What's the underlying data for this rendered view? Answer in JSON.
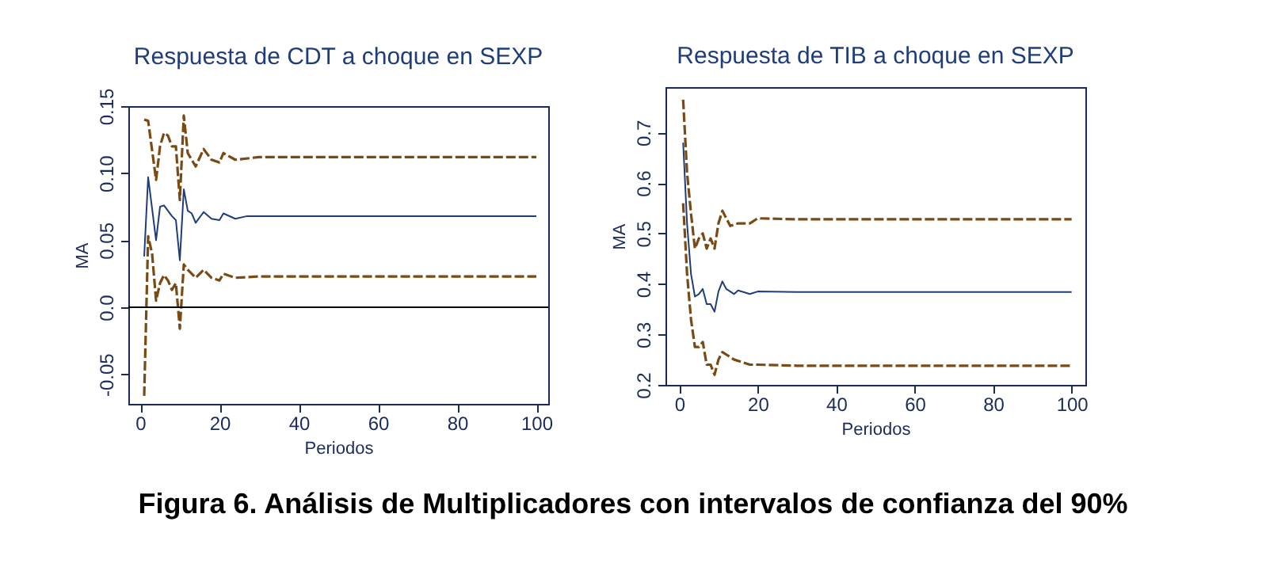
{
  "chart_data": [
    {
      "type": "line",
      "title": "Respuesta de CDT a choque en SEXP",
      "xlabel": "Periodos",
      "ylabel": "MA",
      "xlim": [
        -3,
        103
      ],
      "xticks": [
        0,
        20,
        40,
        60,
        80,
        100
      ],
      "ylim": [
        -0.072,
        0.15
      ],
      "yticks": [
        -0.05,
        {
          "value": 0,
          "label": "0.0"
        },
        0.05,
        {
          "value": 0.1,
          "label": "0.10"
        },
        {
          "value": 0.15,
          "label": "0.15"
        }
      ],
      "grid": false,
      "ref_lines": [
        {
          "axis": "y",
          "value": 0,
          "color": "#000000"
        }
      ],
      "series": [
        {
          "color": "#7a4a14",
          "line_style": "dashed",
          "x": [
            1,
            2,
            4,
            5,
            6,
            7,
            8,
            9,
            10,
            11,
            12,
            14,
            16,
            18,
            20,
            21,
            24,
            30,
            100
          ],
          "values": [
            0.14,
            0.139,
            0.095,
            0.12,
            0.13,
            0.128,
            0.12,
            0.12,
            0.08,
            0.143,
            0.115,
            0.105,
            0.118,
            0.11,
            0.108,
            0.115,
            0.11,
            0.112,
            0.112
          ]
        },
        {
          "color": "#1f3d7a",
          "line_style": "solid",
          "x": [
            1,
            2,
            4,
            5,
            6,
            7,
            8,
            9,
            10,
            11,
            12,
            13,
            14,
            16,
            18,
            20,
            21,
            24,
            27,
            100
          ],
          "values": [
            0.038,
            0.097,
            0.05,
            0.075,
            0.076,
            0.072,
            0.068,
            0.065,
            0.035,
            0.088,
            0.072,
            0.07,
            0.063,
            0.071,
            0.066,
            0.065,
            0.07,
            0.066,
            0.068,
            0.068
          ]
        },
        {
          "color": "#7a4a14",
          "line_style": "dashed",
          "x": [
            1,
            2,
            3,
            4,
            5,
            6,
            7,
            8,
            9,
            10,
            11,
            12,
            14,
            16,
            18,
            20,
            21,
            24,
            30,
            100
          ],
          "values": [
            -0.066,
            0.053,
            0.04,
            0.005,
            0.018,
            0.024,
            0.02,
            0.013,
            0.018,
            -0.016,
            0.032,
            0.028,
            0.022,
            0.028,
            0.022,
            0.02,
            0.025,
            0.022,
            0.023,
            0.023
          ]
        }
      ],
      "annotations": [
        "Figura 6. Análisis de Multiplicadores con intervalos de confianza del 90%"
      ]
    },
    {
      "type": "line",
      "title": "Respuesta de TIB a choque en SEXP",
      "xlabel": "Periodos",
      "ylabel": "MA",
      "xlim": [
        -3.5,
        103.5
      ],
      "xticks": [
        0,
        20,
        40,
        60,
        80,
        100
      ],
      "ylim": [
        0.2,
        0.79
      ],
      "yticks": [
        0.2,
        0.3,
        0.4,
        0.5,
        0.6,
        0.7
      ],
      "grid": false,
      "series": [
        {
          "color": "#7a4a14",
          "line_style": "dashed",
          "x": [
            1,
            2,
            3,
            4,
            5,
            6,
            7,
            8,
            9,
            10,
            11,
            12,
            13,
            15,
            18,
            20,
            30,
            100
          ],
          "values": [
            0.765,
            0.62,
            0.54,
            0.47,
            0.49,
            0.5,
            0.47,
            0.49,
            0.47,
            0.52,
            0.545,
            0.53,
            0.515,
            0.52,
            0.52,
            0.53,
            0.528,
            0.528
          ]
        },
        {
          "color": "#1f3d7a",
          "line_style": "solid",
          "x": [
            1,
            2,
            3,
            4,
            5,
            6,
            7,
            8,
            9,
            10,
            11,
            12,
            14,
            15,
            18,
            20,
            30,
            100
          ],
          "values": [
            0.68,
            0.52,
            0.42,
            0.375,
            0.38,
            0.39,
            0.36,
            0.36,
            0.345,
            0.385,
            0.405,
            0.39,
            0.38,
            0.387,
            0.38,
            0.385,
            0.384,
            0.384
          ]
        },
        {
          "color": "#7a4a14",
          "line_style": "dashed",
          "x": [
            1,
            2,
            3,
            4,
            5,
            6,
            7,
            8,
            9,
            10,
            11,
            12,
            14,
            16,
            18,
            20,
            30,
            100
          ],
          "values": [
            0.56,
            0.42,
            0.33,
            0.275,
            0.275,
            0.285,
            0.24,
            0.24,
            0.22,
            0.25,
            0.265,
            0.26,
            0.25,
            0.245,
            0.24,
            0.24,
            0.238,
            0.238
          ]
        }
      ]
    }
  ]
}
